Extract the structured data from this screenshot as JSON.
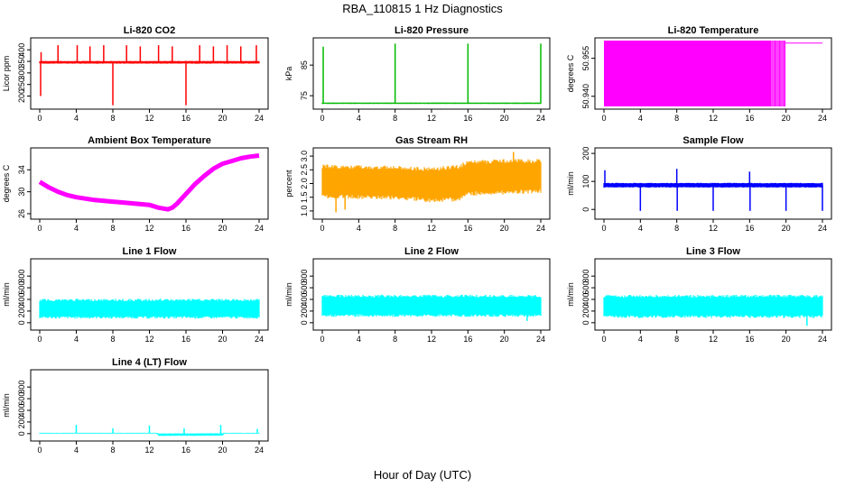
{
  "figure": {
    "title": "RBA_110815  1 Hz Diagnostics",
    "xlabel": "Hour of Day (UTC)"
  },
  "colors": {
    "red": "#ff0000",
    "green": "#00bb00",
    "magenta": "#ff00ff",
    "orange": "#ffa500",
    "blue": "#0000ff",
    "cyan": "#00ffff"
  },
  "chart_data": [
    {
      "type": "line",
      "title": "Li-820 CO2",
      "ylabel": "Licor ppm",
      "color": "red",
      "xlim": [
        0,
        24
      ],
      "ylim": [
        155,
        440
      ],
      "xticks": [
        0,
        4,
        8,
        12,
        16,
        20,
        24
      ],
      "xticklabels": [
        "0",
        "4",
        "8",
        "12",
        "16",
        "20",
        "24"
      ],
      "yticks": [
        200,
        250,
        300,
        350,
        400
      ],
      "yticklabels": [
        "200",
        "250",
        "300",
        "350",
        "400"
      ],
      "band": [
        [
          0,
          340,
          352
        ],
        [
          24,
          340,
          352
        ]
      ],
      "spikes": [
        [
          0.1,
          200
        ],
        [
          0.15,
          390
        ],
        [
          2,
          420
        ],
        [
          4.1,
          420
        ],
        [
          5.5,
          415
        ],
        [
          7,
          420
        ],
        [
          8,
          160
        ],
        [
          9.5,
          420
        ],
        [
          11,
          415
        ],
        [
          13,
          420
        ],
        [
          14.5,
          415
        ],
        [
          16,
          160
        ],
        [
          17.5,
          420
        ],
        [
          19,
          415
        ],
        [
          20.5,
          420
        ],
        [
          22,
          415
        ],
        [
          23.7,
          420
        ]
      ]
    },
    {
      "type": "line",
      "title": "Li-820 Pressure",
      "ylabel": "kPa",
      "color": "green",
      "xlim": [
        0,
        24
      ],
      "ylim": [
        71.5,
        93
      ],
      "xticks": [
        0,
        4,
        8,
        12,
        16,
        20,
        24
      ],
      "xticklabels": [
        "0",
        "4",
        "8",
        "12",
        "16",
        "20",
        "24"
      ],
      "yticks": [
        75,
        85
      ],
      "yticklabels": [
        "75",
        "85"
      ],
      "band": [
        [
          0,
          72.3,
          72.8
        ],
        [
          24,
          72.3,
          72.8
        ]
      ],
      "spikes": [
        [
          0.1,
          91
        ],
        [
          8,
          92
        ],
        [
          16,
          92
        ],
        [
          24,
          92
        ]
      ]
    },
    {
      "type": "area",
      "title": "Li-820 Temperature",
      "ylabel": "degrees C",
      "color": "magenta",
      "xlim": [
        0,
        24
      ],
      "ylim": [
        50.936,
        50.962
      ],
      "xticks": [
        0,
        4,
        8,
        12,
        16,
        20,
        24
      ],
      "xticklabels": [
        "0",
        "4",
        "8",
        "12",
        "16",
        "20",
        "24"
      ],
      "yticks": [
        50.94,
        50.955
      ],
      "yticklabels": [
        "50.940",
        "50.955"
      ],
      "fill_from": 0,
      "fill_to": 18.3,
      "fill_low": 50.936,
      "fill_high": 50.962,
      "stripes_to": 19.9,
      "top_line": [
        [
          19.9,
          24,
          50.961
        ]
      ]
    },
    {
      "type": "line",
      "title": "Ambient Box Temperature",
      "ylabel": "degrees C",
      "color": "magenta",
      "xlim": [
        0,
        24
      ],
      "ylim": [
        25.5,
        37.5
      ],
      "xticks": [
        0,
        4,
        8,
        12,
        16,
        20,
        24
      ],
      "xticklabels": [
        "0",
        "4",
        "8",
        "12",
        "16",
        "20",
        "24"
      ],
      "yticks": [
        26,
        30,
        34
      ],
      "yticklabels": [
        "26",
        "30",
        "34"
      ],
      "series": [
        [
          0,
          31.8
        ],
        [
          1,
          30.8
        ],
        [
          2,
          30
        ],
        [
          3,
          29.4
        ],
        [
          4,
          29
        ],
        [
          6,
          28.5
        ],
        [
          8,
          28.2
        ],
        [
          10,
          27.9
        ],
        [
          12,
          27.6
        ],
        [
          13,
          27.1
        ],
        [
          14,
          26.8
        ],
        [
          14.5,
          27.1
        ],
        [
          15,
          27.8
        ],
        [
          16,
          29.6
        ],
        [
          17,
          31.4
        ],
        [
          18,
          32.9
        ],
        [
          19,
          34.2
        ],
        [
          20,
          35.1
        ],
        [
          21,
          35.6
        ],
        [
          22,
          36.1
        ],
        [
          23,
          36.4
        ],
        [
          24,
          36.6
        ]
      ]
    },
    {
      "type": "line",
      "title": "Gas Stream RH",
      "ylabel": "percent",
      "color": "orange",
      "xlim": [
        0,
        24
      ],
      "ylim": [
        0.8,
        3.2
      ],
      "xticks": [
        0,
        4,
        8,
        12,
        16,
        20,
        24
      ],
      "xticklabels": [
        "0",
        "4",
        "8",
        "12",
        "16",
        "20",
        "24"
      ],
      "yticks": [
        1,
        1.5,
        2,
        2.5,
        3
      ],
      "yticklabels": [
        "1.0",
        "1.5",
        "2.0",
        "2.5",
        "3.0"
      ],
      "band": [
        [
          0,
          1.45,
          2.7
        ],
        [
          8,
          1.42,
          2.65
        ],
        [
          12,
          1.3,
          2.6
        ],
        [
          15,
          1.35,
          2.7
        ],
        [
          16,
          1.55,
          2.85
        ],
        [
          20,
          1.6,
          2.9
        ],
        [
          24,
          1.65,
          2.9
        ]
      ],
      "spikes": [
        [
          1.5,
          0.95
        ],
        [
          2.5,
          1.05
        ],
        [
          21,
          3.15
        ]
      ]
    },
    {
      "type": "line",
      "title": "Sample Flow",
      "ylabel": "ml/min",
      "color": "blue",
      "xlim": [
        0,
        24
      ],
      "ylim": [
        -25,
        210
      ],
      "xticks": [
        0,
        4,
        8,
        12,
        16,
        20,
        24
      ],
      "xticklabels": [
        "0",
        "4",
        "8",
        "12",
        "16",
        "20",
        "24"
      ],
      "yticks": [
        0,
        100,
        200
      ],
      "yticklabels": [
        "0",
        "100",
        "200"
      ],
      "band": [
        [
          0,
          78,
          95
        ],
        [
          24,
          78,
          95
        ]
      ],
      "spikes": [
        [
          0.1,
          140
        ],
        [
          4,
          -5
        ],
        [
          8,
          145
        ],
        [
          8.05,
          -5
        ],
        [
          12,
          -5
        ],
        [
          16,
          135
        ],
        [
          16.05,
          -5
        ],
        [
          20,
          -5
        ],
        [
          24,
          -5
        ]
      ]
    },
    {
      "type": "line",
      "title": "Line 1 Flow",
      "ylabel": "ml/min",
      "color": "cyan",
      "xlim": [
        0,
        24
      ],
      "ylim": [
        -80,
        1050
      ],
      "xticks": [
        0,
        4,
        8,
        12,
        16,
        20,
        24
      ],
      "xticklabels": [
        "0",
        "4",
        "8",
        "12",
        "16",
        "20",
        "24"
      ],
      "yticks": [
        0,
        200,
        400,
        600,
        800
      ],
      "yticklabels": [
        "0",
        "200",
        "400",
        "600",
        "800"
      ],
      "band": [
        [
          0,
          70,
          410
        ],
        [
          24,
          70,
          410
        ]
      ],
      "spikes": []
    },
    {
      "type": "line",
      "title": "Line 2 Flow",
      "ylabel": "ml/min",
      "color": "cyan",
      "xlim": [
        0,
        24
      ],
      "ylim": [
        -80,
        1050
      ],
      "xticks": [
        0,
        4,
        8,
        12,
        16,
        20,
        24
      ],
      "xticklabels": [
        "0",
        "4",
        "8",
        "12",
        "16",
        "20",
        "24"
      ],
      "yticks": [
        0,
        200,
        400,
        600,
        800
      ],
      "yticklabels": [
        "0",
        "200",
        "400",
        "600",
        "800"
      ],
      "band": [
        [
          0,
          100,
          480
        ],
        [
          24,
          100,
          480
        ]
      ],
      "spikes": [
        [
          22.5,
          30
        ]
      ]
    },
    {
      "type": "line",
      "title": "Line 3 Flow",
      "ylabel": "ml/min",
      "color": "cyan",
      "xlim": [
        0,
        24
      ],
      "ylim": [
        -80,
        1050
      ],
      "xticks": [
        0,
        4,
        8,
        12,
        16,
        20,
        24
      ],
      "xticklabels": [
        "0",
        "4",
        "8",
        "12",
        "16",
        "20",
        "24"
      ],
      "yticks": [
        0,
        200,
        400,
        600,
        800
      ],
      "yticklabels": [
        "0",
        "200",
        "400",
        "600",
        "800"
      ],
      "band": [
        [
          0,
          80,
          480
        ],
        [
          24,
          80,
          480
        ]
      ],
      "spikes": [
        [
          22.3,
          -50
        ]
      ]
    },
    {
      "type": "line",
      "title": "Line 4 (LT) Flow",
      "ylabel": "ml/min",
      "color": "cyan",
      "xlim": [
        0,
        24
      ],
      "ylim": [
        -80,
        1050
      ],
      "xticks": [
        0,
        4,
        8,
        12,
        16,
        20,
        24
      ],
      "xticklabels": [
        "0",
        "4",
        "8",
        "12",
        "16",
        "20",
        "24"
      ],
      "yticks": [
        0,
        200,
        400,
        600,
        800
      ],
      "yticklabels": [
        "0",
        "200",
        "400",
        "600",
        "800"
      ],
      "band": [
        [
          0,
          0,
          15
        ],
        [
          12.8,
          0,
          15
        ],
        [
          13,
          -40,
          5
        ],
        [
          20,
          -35,
          8
        ],
        [
          20.2,
          0,
          15
        ],
        [
          24,
          0,
          15
        ]
      ],
      "spikes": [
        [
          4,
          150
        ],
        [
          8,
          90
        ],
        [
          12,
          140
        ],
        [
          15.8,
          90
        ],
        [
          19.8,
          150
        ],
        [
          23.8,
          80
        ]
      ]
    }
  ]
}
